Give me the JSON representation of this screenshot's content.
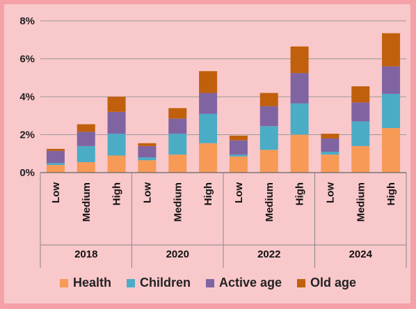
{
  "chart_data": {
    "type": "bar",
    "stacked": true,
    "groups": [
      {
        "label": "2018",
        "categories": [
          "Low",
          "Medium",
          "High"
        ]
      },
      {
        "label": "2020",
        "categories": [
          "Low",
          "Medium",
          "High"
        ]
      },
      {
        "label": "2022",
        "categories": [
          "Low",
          "Medium",
          "High"
        ]
      },
      {
        "label": "2024",
        "categories": [
          "Low",
          "Medium",
          "High"
        ]
      }
    ],
    "series": [
      {
        "name": "Health",
        "color": "#f79a56",
        "values": [
          0.4,
          0.55,
          0.9,
          0.65,
          0.95,
          1.55,
          0.85,
          1.2,
          2.0,
          0.95,
          1.4,
          2.35
        ]
      },
      {
        "name": "Children",
        "color": "#4bacc6",
        "values": [
          0.1,
          0.85,
          1.15,
          0.15,
          1.1,
          1.55,
          0.1,
          1.25,
          1.65,
          0.15,
          1.3,
          1.8
        ]
      },
      {
        "name": "Active age",
        "color": "#8064a2",
        "values": [
          0.65,
          0.75,
          1.15,
          0.6,
          0.8,
          1.1,
          0.75,
          1.05,
          1.6,
          0.7,
          1.0,
          1.45
        ]
      },
      {
        "name": "Old age",
        "color": "#c0600c",
        "values": [
          0.1,
          0.4,
          0.8,
          0.15,
          0.55,
          1.15,
          0.25,
          0.7,
          1.4,
          0.25,
          0.85,
          1.75
        ]
      }
    ],
    "y_ticks": [
      "0%",
      "2%",
      "4%",
      "6%",
      "8%"
    ],
    "ylim": [
      0,
      8
    ],
    "grid": true,
    "legend_position": "bottom"
  }
}
